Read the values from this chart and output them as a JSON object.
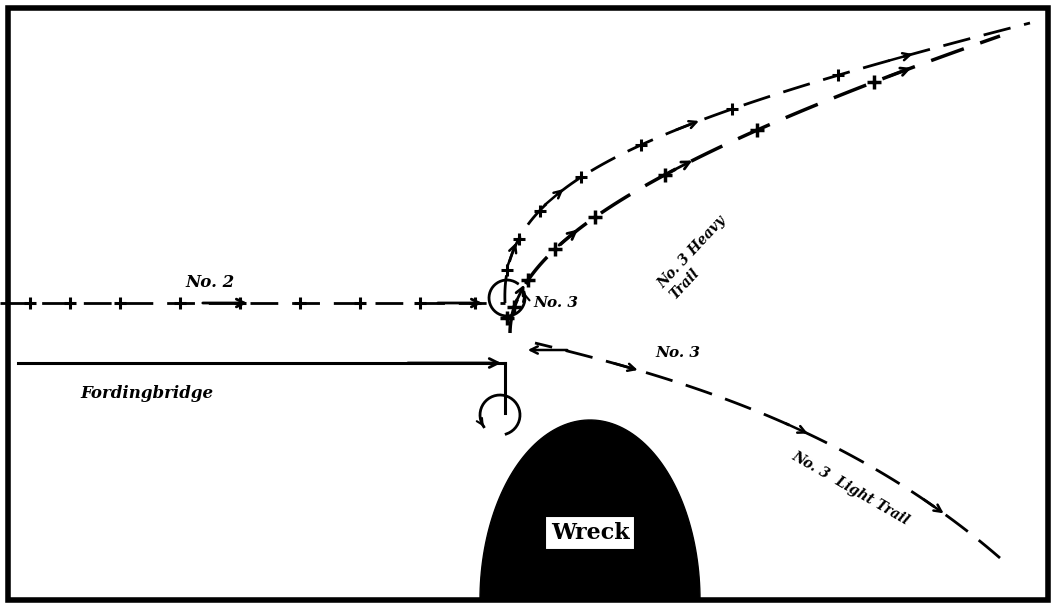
{
  "background_color": "#ffffff",
  "fig_width": 10.56,
  "fig_height": 6.08,
  "xlim": [
    0,
    10.56
  ],
  "ylim": [
    0,
    6.08
  ],
  "wreck_label": "Wreck",
  "fordingbridge_label": "Fordingbridge",
  "no2_label": "No. 2",
  "no3_light_label": "No. 3  Light Trail",
  "no3_heavy_label": "No. 3 Heavy Trail"
}
